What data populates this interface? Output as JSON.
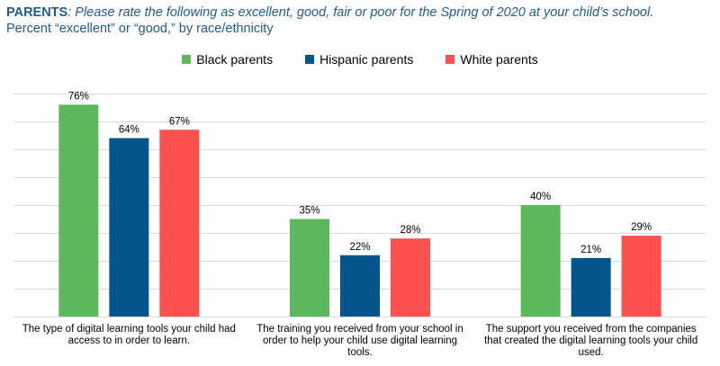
{
  "title": {
    "bold": "PARENTS",
    "italic": ": Please rate the following as excellent, good, fair or poor for the Spring of 2020 at your child’s school.",
    "subtitle": "Percent “excellent” or “good,” by race/ethnicity"
  },
  "colors": {
    "black_parents": "#5cb85c",
    "hispanic_parents": "#03558c",
    "white_parents": "#ff5050",
    "gridline": "#d9d9d9",
    "title": "#1f5a8e"
  },
  "chart_data": {
    "type": "bar",
    "categories": [
      [
        "The type of digital learning tools your child had",
        "access to in order to learn."
      ],
      [
        "The training you received from your school in",
        "order to help your child use digital learning",
        "tools."
      ],
      [
        "The support you received from the companies",
        "that created the digital learning tools your child",
        "used."
      ]
    ],
    "series": [
      {
        "name": "Black parents",
        "values": [
          76,
          35,
          40
        ],
        "labels": [
          "76%",
          "35%",
          "40%"
        ]
      },
      {
        "name": "Hispanic parents",
        "values": [
          64,
          22,
          21
        ],
        "labels": [
          "64%",
          "22%",
          "21%"
        ]
      },
      {
        "name": "White parents",
        "values": [
          67,
          28,
          29
        ],
        "labels": [
          "67%",
          "28%",
          "29%"
        ]
      }
    ],
    "ylim": [
      0,
      80
    ],
    "grid": true,
    "legend": "top-center"
  }
}
